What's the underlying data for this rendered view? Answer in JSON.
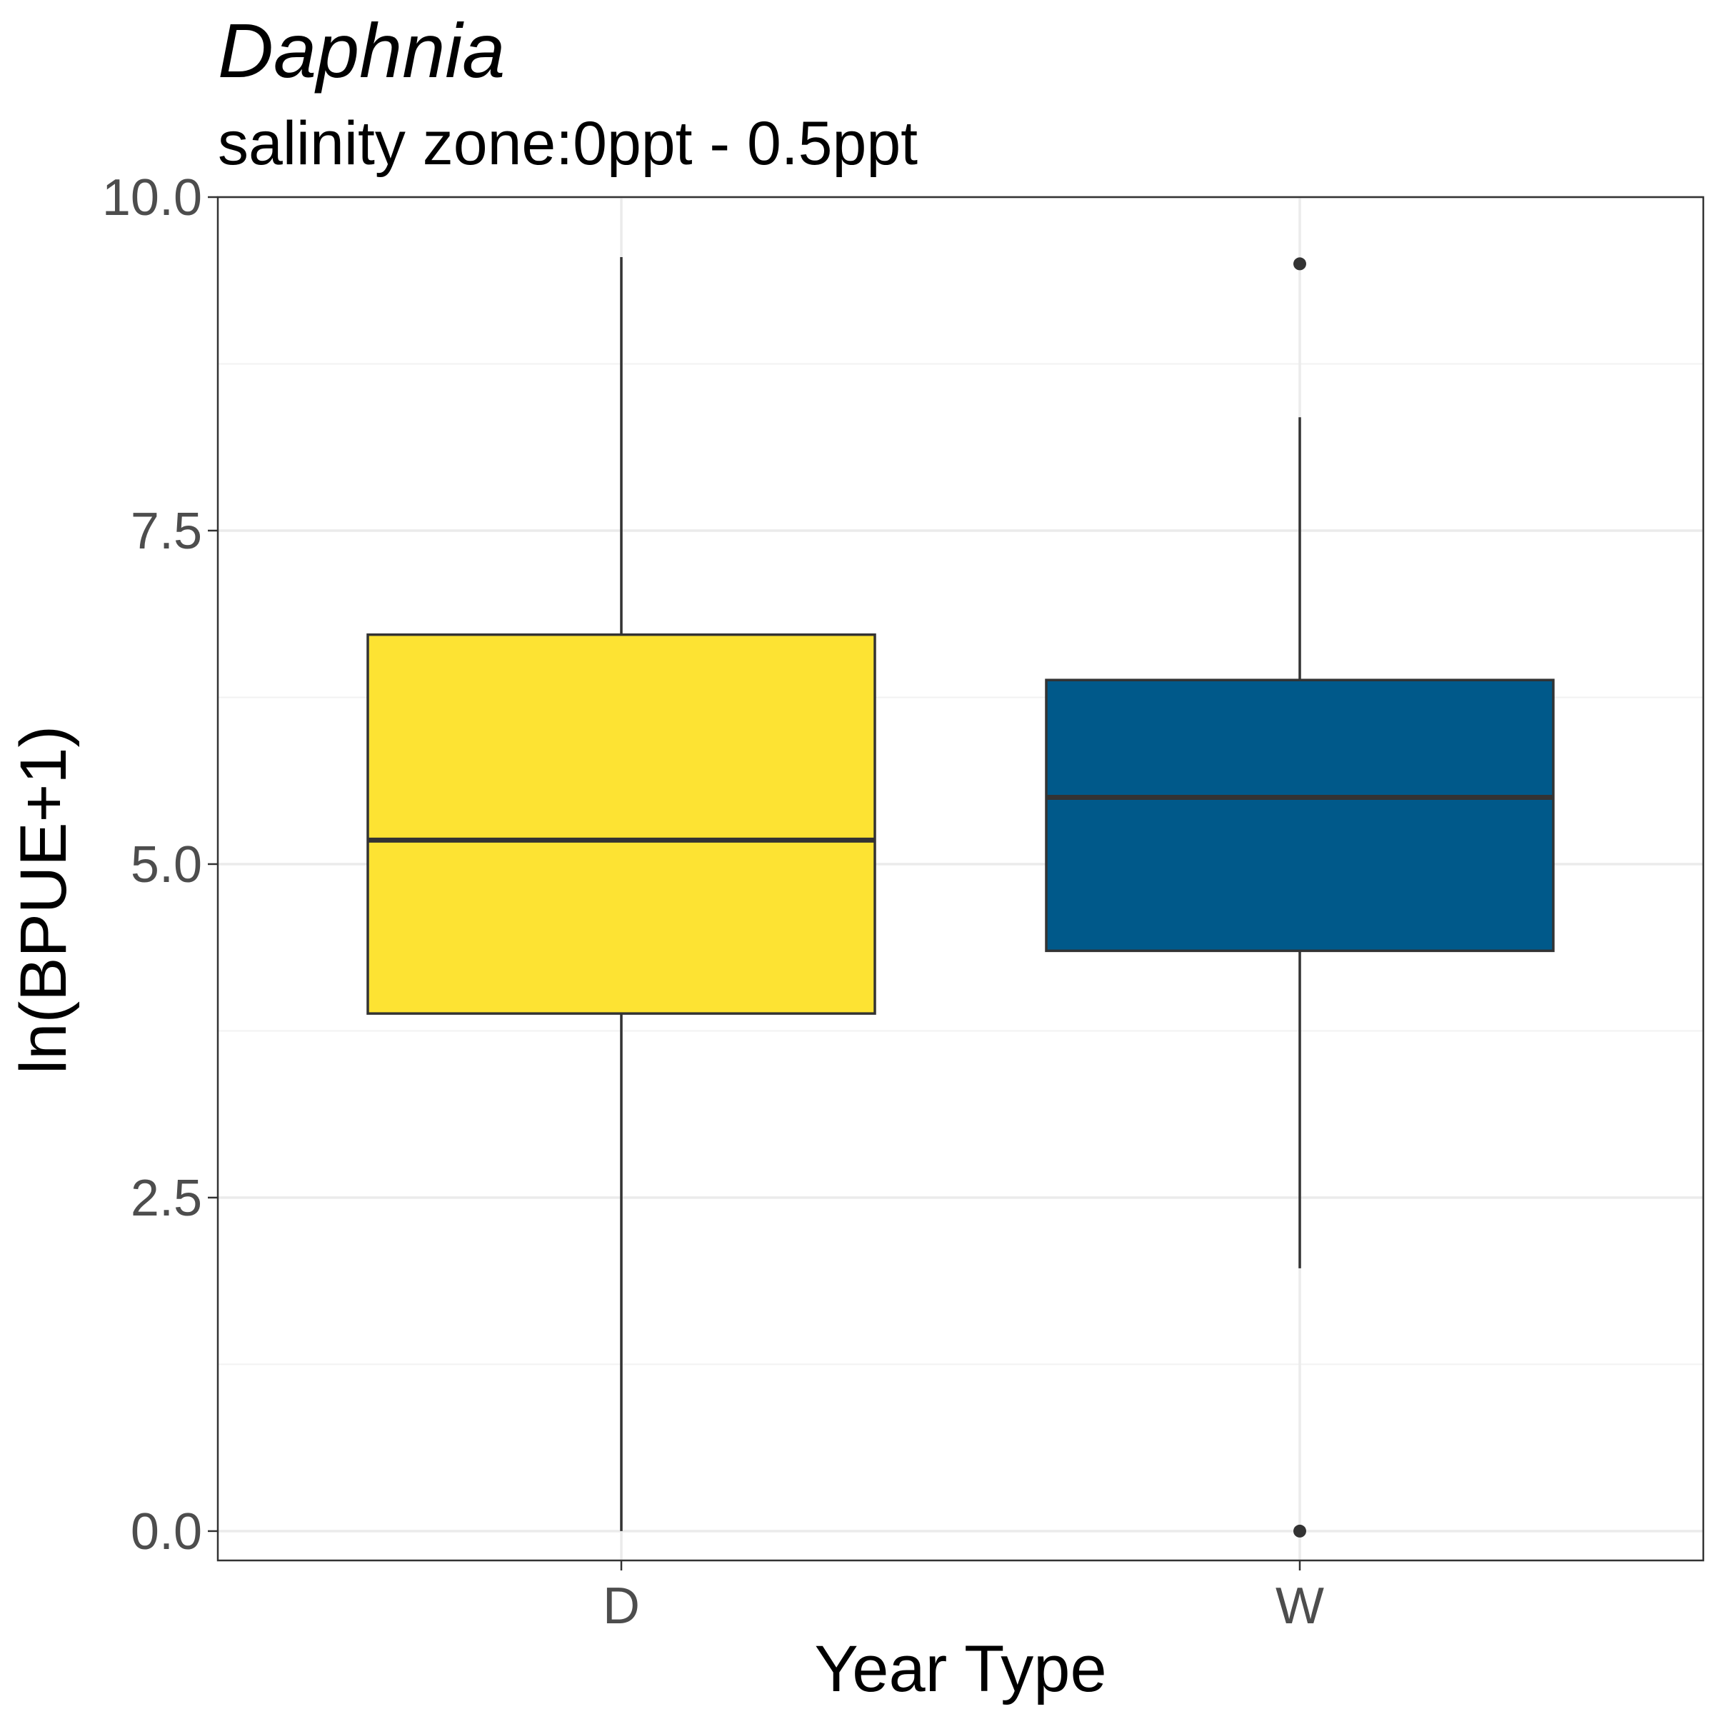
{
  "chart_data": {
    "type": "boxplot",
    "title": "Daphnia",
    "subtitle": "salinity zone:0ppt - 0.5ppt",
    "xlabel": "Year Type",
    "ylabel": "ln(BPUE+1)",
    "ylim": [
      -0.22,
      10.0
    ],
    "y_ticks": [
      0.0,
      2.5,
      5.0,
      7.5,
      10.0
    ],
    "y_tick_labels": [
      "0.0",
      "2.5",
      "5.0",
      "7.5",
      "10.0"
    ],
    "y_minor_ticks": [
      1.25,
      3.75,
      6.25,
      8.75
    ],
    "grid": true,
    "legend": "none",
    "categories": [
      "D",
      "W"
    ],
    "boxes": [
      {
        "category": "D",
        "whisker_low": 0.0,
        "q1": 3.88,
        "median": 5.18,
        "q3": 6.72,
        "whisker_high": 9.55,
        "outliers": [],
        "color": "#FDE333"
      },
      {
        "category": "W",
        "whisker_low": 1.97,
        "q1": 4.35,
        "median": 5.5,
        "q3": 6.38,
        "whisker_high": 8.35,
        "outliers": [
          9.5,
          0.0
        ],
        "color": "#00598A"
      }
    ]
  }
}
